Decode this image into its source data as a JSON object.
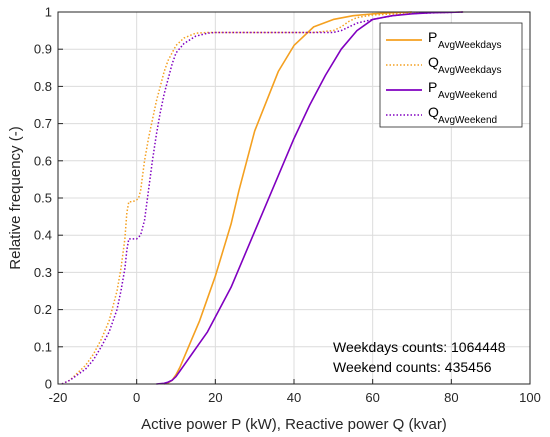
{
  "chart_data": {
    "type": "line",
    "title": "",
    "xlabel": "Active power P (kW), Reactive power Q (kvar)",
    "ylabel": "Relative frequency (-)",
    "xlim": [
      -20,
      100
    ],
    "ylim": [
      0,
      1
    ],
    "xticks": [
      -20,
      0,
      20,
      40,
      60,
      80,
      100
    ],
    "yticks": [
      0,
      0.1,
      0.2,
      0.3,
      0.4,
      0.5,
      0.6,
      0.7,
      0.8,
      0.9,
      1
    ],
    "grid": true,
    "legend_position": "top-right",
    "annotations": [
      "Weekdays counts: 1064448",
      "Weekend counts: 435456"
    ],
    "series": [
      {
        "main": "P",
        "sub": "AvgWeekdays",
        "color": "#F4A020",
        "style": "solid",
        "x": [
          7,
          8,
          9,
          10,
          11,
          12,
          14,
          16,
          18,
          20,
          22,
          24,
          26,
          28,
          30,
          33,
          36,
          40,
          45,
          50,
          55,
          60,
          65,
          70
        ],
        "y": [
          0,
          0.003,
          0.01,
          0.025,
          0.045,
          0.07,
          0.12,
          0.17,
          0.23,
          0.29,
          0.36,
          0.43,
          0.52,
          0.6,
          0.68,
          0.76,
          0.84,
          0.91,
          0.96,
          0.98,
          0.99,
          0.995,
          0.998,
          1.0
        ]
      },
      {
        "main": "Q",
        "sub": "AvgWeekdays",
        "color": "#F4A020",
        "style": "dotted",
        "x": [
          -19,
          -17,
          -15,
          -13,
          -11,
          -9,
          -7,
          -5,
          -4,
          -3,
          -2.5,
          -2,
          -1,
          0,
          0.5,
          1,
          2,
          3,
          4,
          5,
          6,
          7,
          8,
          10,
          12,
          15,
          18,
          20,
          25,
          30,
          40,
          45,
          50,
          52,
          54,
          56,
          60,
          70,
          83
        ],
        "y": [
          0,
          0.01,
          0.03,
          0.05,
          0.08,
          0.12,
          0.17,
          0.25,
          0.31,
          0.39,
          0.46,
          0.49,
          0.49,
          0.495,
          0.5,
          0.52,
          0.6,
          0.66,
          0.71,
          0.76,
          0.8,
          0.84,
          0.87,
          0.91,
          0.93,
          0.943,
          0.945,
          0.945,
          0.945,
          0.945,
          0.945,
          0.945,
          0.95,
          0.96,
          0.975,
          0.985,
          0.992,
          0.997,
          1.0
        ]
      },
      {
        "main": "P",
        "sub": "AvgWeekend",
        "color": "#8000C0",
        "style": "solid",
        "x": [
          5,
          7,
          8,
          9,
          10,
          11,
          12,
          14,
          16,
          18,
          20,
          24,
          28,
          32,
          36,
          40,
          44,
          48,
          52,
          56,
          60,
          65,
          70,
          75,
          80,
          83
        ],
        "y": [
          0,
          0.002,
          0.005,
          0.01,
          0.02,
          0.035,
          0.05,
          0.08,
          0.11,
          0.14,
          0.18,
          0.26,
          0.36,
          0.46,
          0.56,
          0.66,
          0.75,
          0.83,
          0.9,
          0.95,
          0.98,
          0.99,
          0.995,
          0.998,
          0.999,
          1.0
        ]
      },
      {
        "main": "Q",
        "sub": "AvgWeekend",
        "color": "#8000C0",
        "style": "dotted",
        "x": [
          -19,
          -17,
          -15,
          -13,
          -11,
          -9,
          -7,
          -5,
          -4,
          -3,
          -2.5,
          -2,
          -1,
          0,
          1,
          2,
          3,
          4,
          5,
          6,
          7,
          8,
          9,
          10,
          12,
          15,
          18,
          20,
          25,
          30,
          40,
          50,
          52,
          54,
          56,
          60,
          65,
          70,
          83
        ],
        "y": [
          0,
          0.01,
          0.025,
          0.04,
          0.065,
          0.1,
          0.14,
          0.2,
          0.25,
          0.31,
          0.36,
          0.39,
          0.39,
          0.39,
          0.4,
          0.44,
          0.52,
          0.6,
          0.67,
          0.73,
          0.78,
          0.82,
          0.86,
          0.89,
          0.915,
          0.935,
          0.943,
          0.945,
          0.945,
          0.945,
          0.945,
          0.945,
          0.95,
          0.96,
          0.97,
          0.98,
          0.99,
          0.996,
          1.0
        ]
      }
    ]
  }
}
